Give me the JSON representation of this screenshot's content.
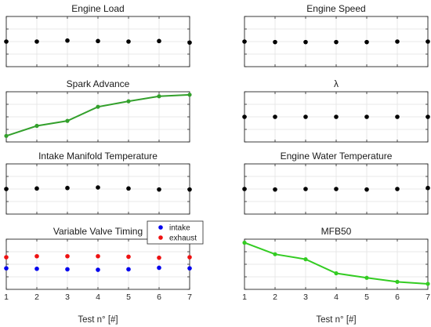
{
  "chart_data": [
    {
      "type": "scatter",
      "title": "Engine Load",
      "x": [
        1,
        2,
        3,
        4,
        5,
        6,
        7
      ],
      "xlim": [
        1,
        7
      ],
      "ylim": [
        0,
        1
      ],
      "xlabel": "",
      "series": [
        {
          "color": "#000000",
          "values": [
            0.5,
            0.5,
            0.52,
            0.51,
            0.5,
            0.51,
            0.48
          ]
        }
      ]
    },
    {
      "type": "scatter",
      "title": "Engine Speed",
      "x": [
        1,
        2,
        3,
        4,
        5,
        6,
        7
      ],
      "xlim": [
        1,
        7
      ],
      "ylim": [
        0,
        1
      ],
      "xlabel": "",
      "series": [
        {
          "color": "#000000",
          "values": [
            0.5,
            0.49,
            0.49,
            0.49,
            0.49,
            0.5,
            0.5
          ]
        }
      ]
    },
    {
      "type": "line",
      "title": "Spark Advance",
      "x": [
        1,
        2,
        3,
        4,
        5,
        6,
        7
      ],
      "xlim": [
        1,
        7
      ],
      "ylim": [
        0,
        1
      ],
      "xlabel": "",
      "series": [
        {
          "color": "#33a02c",
          "values": [
            0.12,
            0.32,
            0.42,
            0.7,
            0.81,
            0.91,
            0.94
          ]
        }
      ]
    },
    {
      "type": "scatter",
      "title": "λ",
      "x": [
        1,
        2,
        3,
        4,
        5,
        6,
        7
      ],
      "xlim": [
        1,
        7
      ],
      "ylim": [
        0,
        1
      ],
      "xlabel": "",
      "series": [
        {
          "color": "#000000",
          "values": [
            0.5,
            0.5,
            0.5,
            0.5,
            0.5,
            0.5,
            0.5
          ]
        }
      ]
    },
    {
      "type": "scatter",
      "title": "Intake Manifold Temperature",
      "x": [
        1,
        2,
        3,
        4,
        5,
        6,
        7
      ],
      "xlim": [
        1,
        7
      ],
      "ylim": [
        0,
        1
      ],
      "xlabel": "",
      "series": [
        {
          "color": "#000000",
          "values": [
            0.5,
            0.51,
            0.52,
            0.53,
            0.51,
            0.49,
            0.49
          ]
        }
      ]
    },
    {
      "type": "scatter",
      "title": "Engine Water Temperature",
      "x": [
        1,
        2,
        3,
        4,
        5,
        6,
        7
      ],
      "xlim": [
        1,
        7
      ],
      "ylim": [
        0,
        1
      ],
      "xlabel": "",
      "series": [
        {
          "color": "#000000",
          "values": [
            0.5,
            0.49,
            0.5,
            0.5,
            0.49,
            0.5,
            0.52
          ]
        }
      ]
    },
    {
      "type": "scatter",
      "title": "Variable Valve Timing",
      "x": [
        1,
        2,
        3,
        4,
        5,
        6,
        7
      ],
      "xlim": [
        1,
        7
      ],
      "ylim": [
        0,
        1
      ],
      "xlabel": "Test n° [#]",
      "xticks": [
        "1",
        "2",
        "3",
        "4",
        "5",
        "6",
        "7"
      ],
      "legend": "top-right",
      "series": [
        {
          "name": "intake",
          "color": "#0000ee",
          "values": [
            0.42,
            0.41,
            0.4,
            0.39,
            0.4,
            0.43,
            0.42
          ]
        },
        {
          "name": "exhaust",
          "color": "#ee1111",
          "values": [
            0.64,
            0.66,
            0.66,
            0.66,
            0.65,
            0.63,
            0.64
          ]
        }
      ]
    },
    {
      "type": "line",
      "title": "MFB50",
      "x": [
        1,
        2,
        3,
        4,
        5,
        6,
        7
      ],
      "xlim": [
        1,
        7
      ],
      "ylim": [
        0,
        1
      ],
      "xlabel": "Test n° [#]",
      "xticks": [
        "1",
        "2",
        "3",
        "4",
        "5",
        "6",
        "7"
      ],
      "series": [
        {
          "color": "#33cc22",
          "values": [
            0.93,
            0.7,
            0.6,
            0.32,
            0.23,
            0.15,
            0.11
          ]
        }
      ]
    }
  ]
}
